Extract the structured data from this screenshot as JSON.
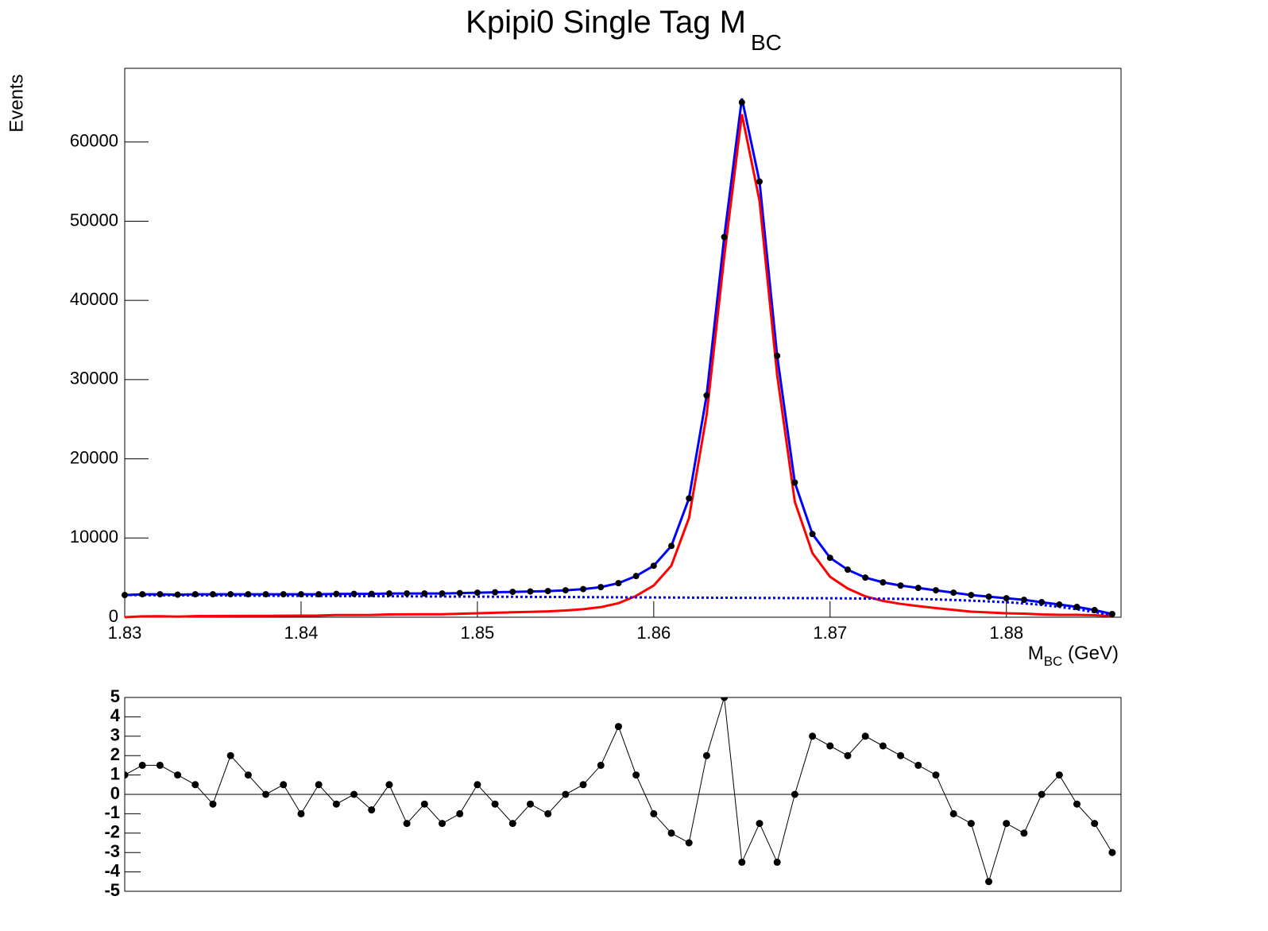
{
  "chart_data": [
    {
      "type": "scatter-fit",
      "title": {
        "text": "Kpipi0 Single Tag M",
        "subscript": "BC"
      },
      "y_label": "Events",
      "x_label": {
        "text": "M",
        "subscript": "BC",
        "suffix": " (GeV)"
      },
      "x": [
        1.83,
        1.831,
        1.832,
        1.833,
        1.834,
        1.835,
        1.836,
        1.837,
        1.838,
        1.839,
        1.84,
        1.841,
        1.842,
        1.843,
        1.844,
        1.845,
        1.846,
        1.847,
        1.848,
        1.849,
        1.85,
        1.851,
        1.852,
        1.853,
        1.854,
        1.855,
        1.856,
        1.857,
        1.858,
        1.859,
        1.86,
        1.861,
        1.862,
        1.863,
        1.864,
        1.865,
        1.866,
        1.867,
        1.868,
        1.869,
        1.87,
        1.871,
        1.872,
        1.873,
        1.874,
        1.875,
        1.876,
        1.877,
        1.878,
        1.879,
        1.88,
        1.881,
        1.882,
        1.883,
        1.884,
        1.885,
        1.886
      ],
      "series": [
        {
          "style": "points",
          "color": "#000000",
          "values": [
            2800,
            2900,
            2900,
            2850,
            2900,
            2900,
            2900,
            2900,
            2900,
            2900,
            2900,
            2900,
            2950,
            2950,
            2950,
            3000,
            3000,
            3000,
            3000,
            3050,
            3100,
            3150,
            3200,
            3250,
            3300,
            3400,
            3550,
            3800,
            4300,
            5200,
            6500,
            9000,
            15000,
            28000,
            48000,
            65000,
            55000,
            33000,
            17000,
            10500,
            7500,
            6000,
            5000,
            4400,
            4000,
            3700,
            3400,
            3100,
            2800,
            2600,
            2400,
            2200,
            1900,
            1600,
            1300,
            900,
            400
          ]
        },
        {
          "style": "line",
          "color": "#0000ff",
          "values": [
            2800,
            2900,
            2900,
            2850,
            2900,
            2900,
            2900,
            2900,
            2900,
            2900,
            2900,
            2900,
            2950,
            2950,
            2950,
            3000,
            3000,
            3000,
            3000,
            3050,
            3100,
            3150,
            3200,
            3250,
            3300,
            3400,
            3550,
            3800,
            4300,
            5200,
            6500,
            9000,
            15000,
            28000,
            48000,
            65500,
            55000,
            33000,
            17000,
            10500,
            7500,
            6000,
            5000,
            4400,
            4000,
            3700,
            3400,
            3100,
            2800,
            2600,
            2400,
            2200,
            1900,
            1600,
            1300,
            900,
            400
          ]
        },
        {
          "style": "line",
          "color": "#ff0000",
          "values": [
            0,
            110,
            120,
            80,
            140,
            150,
            160,
            170,
            180,
            190,
            200,
            210,
            270,
            280,
            290,
            350,
            360,
            370,
            380,
            440,
            500,
            560,
            620,
            680,
            740,
            850,
            1010,
            1270,
            1780,
            2690,
            4000,
            6510,
            12520,
            25530,
            45540,
            63500,
            52560,
            30570,
            14580,
            8090,
            5100,
            3620,
            2640,
            2060,
            1680,
            1400,
            1150,
            920,
            700,
            600,
            500,
            450,
            350,
            300,
            300,
            250,
            150
          ]
        },
        {
          "style": "dotted",
          "color": "#0000ff",
          "values": [
            2800,
            2790,
            2780,
            2770,
            2760,
            2750,
            2740,
            2730,
            2720,
            2710,
            2700,
            2690,
            2680,
            2670,
            2660,
            2650,
            2640,
            2630,
            2620,
            2610,
            2600,
            2590,
            2580,
            2570,
            2560,
            2550,
            2540,
            2530,
            2520,
            2510,
            2500,
            2490,
            2480,
            2470,
            2460,
            2450,
            2440,
            2430,
            2420,
            2410,
            2400,
            2380,
            2360,
            2340,
            2320,
            2300,
            2250,
            2180,
            2100,
            2000,
            1900,
            1750,
            1550,
            1300,
            1000,
            650,
            250
          ]
        }
      ],
      "xlim": [
        1.83,
        1.8865
      ],
      "xticks": [
        1.83,
        1.84,
        1.85,
        1.86,
        1.87,
        1.88
      ],
      "ylim": [
        0,
        69300
      ],
      "yticks": [
        0,
        10000,
        20000,
        30000,
        40000,
        50000,
        60000
      ]
    },
    {
      "type": "pull",
      "x": [
        1.83,
        1.831,
        1.832,
        1.833,
        1.834,
        1.835,
        1.836,
        1.837,
        1.838,
        1.839,
        1.84,
        1.841,
        1.842,
        1.843,
        1.844,
        1.845,
        1.846,
        1.847,
        1.848,
        1.849,
        1.85,
        1.851,
        1.852,
        1.853,
        1.854,
        1.855,
        1.856,
        1.857,
        1.858,
        1.859,
        1.86,
        1.861,
        1.862,
        1.863,
        1.864,
        1.865,
        1.866,
        1.867,
        1.868,
        1.869,
        1.87,
        1.871,
        1.872,
        1.873,
        1.874,
        1.875,
        1.876,
        1.877,
        1.878,
        1.879,
        1.88,
        1.881,
        1.882,
        1.883,
        1.884,
        1.885,
        1.886
      ],
      "values": [
        1,
        1.5,
        1.5,
        1,
        0.5,
        -0.5,
        2,
        1,
        0,
        0.5,
        -1,
        0.5,
        -0.5,
        0,
        -0.8,
        0.5,
        -1.5,
        -0.5,
        -1.5,
        -1,
        0.5,
        -0.5,
        -1.5,
        -0.5,
        -1,
        0,
        0.5,
        1.5,
        3.5,
        1,
        -1,
        -2,
        -2.5,
        2,
        5,
        -3.5,
        -1.5,
        -3.5,
        0,
        3,
        2.5,
        2,
        3,
        2.5,
        2,
        1.5,
        1,
        -1,
        -1.5,
        -4.5,
        -1.5,
        -2,
        0,
        1,
        -0.5,
        -1.5,
        -3
      ],
      "color": "#000000",
      "xlim": [
        1.83,
        1.8865
      ],
      "ylim": [
        -5,
        5
      ],
      "yticks": [
        -5,
        -4,
        -3,
        -2,
        -1,
        0,
        1,
        2,
        3,
        4,
        5
      ]
    }
  ]
}
